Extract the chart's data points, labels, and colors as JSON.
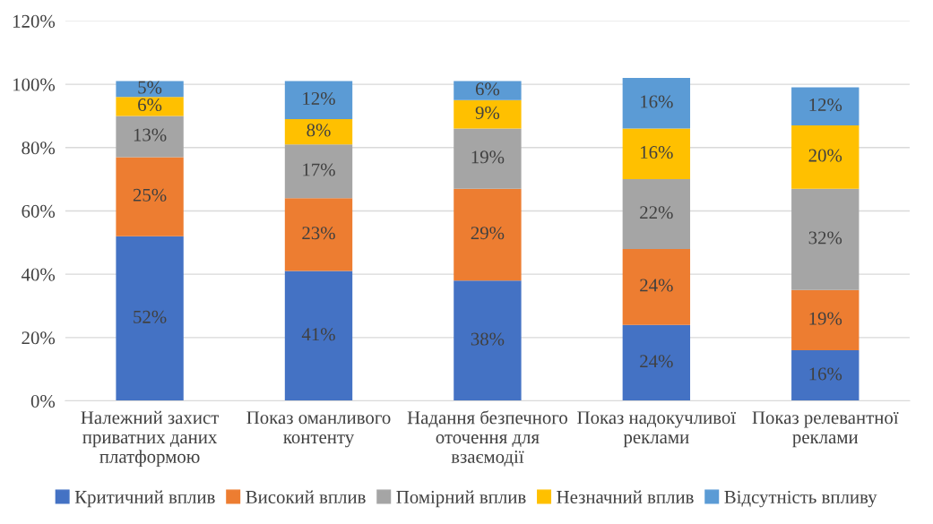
{
  "chart_data": {
    "type": "bar",
    "stacked": true,
    "categories": [
      "Належний захист\nприватних даних\nплатформою",
      "Показ оманливого\nконтенту",
      "Надання безпечного\nоточення для\nвзаємодії",
      "Показ надокучливої\nреклами",
      "Показ релевантної\nреклами"
    ],
    "series": [
      {
        "name": "Критичний вплив",
        "color": "#4472c4",
        "values": [
          52,
          41,
          38,
          24,
          16
        ],
        "value_labels": [
          "52%",
          "41%",
          "38%",
          "24%",
          "16%"
        ]
      },
      {
        "name": "Високий вплив",
        "color": "#ed7d31",
        "values": [
          25,
          23,
          29,
          24,
          19
        ],
        "value_labels": [
          "25%",
          "23%",
          "29%",
          "24%",
          "19%"
        ]
      },
      {
        "name": "Помірний вплив",
        "color": "#a5a5a5",
        "values": [
          13,
          17,
          19,
          22,
          32
        ],
        "value_labels": [
          "13%",
          "17%",
          "19%",
          "22%",
          "32%"
        ]
      },
      {
        "name": "Незначний вплив",
        "color": "#ffc000",
        "values": [
          6,
          8,
          9,
          16,
          20
        ],
        "value_labels": [
          "6%",
          "8%",
          "9%",
          "16%",
          "20%"
        ]
      },
      {
        "name": "Відсутність впливу",
        "color": "#5b9bd5",
        "values": [
          5,
          12,
          6,
          16,
          12
        ],
        "value_labels": [
          "5%",
          "12%",
          "6%",
          "16%",
          "12%"
        ]
      }
    ],
    "ylim": [
      0,
      120
    ],
    "yticks": [
      {
        "value": 0,
        "label": "0%"
      },
      {
        "value": 20,
        "label": "20%"
      },
      {
        "value": 40,
        "label": "40%"
      },
      {
        "value": 60,
        "label": "60%"
      },
      {
        "value": 80,
        "label": "80%"
      },
      {
        "value": 100,
        "label": "100%"
      },
      {
        "value": 120,
        "label": "120%"
      }
    ],
    "grid": "y",
    "legend": "bottom"
  }
}
